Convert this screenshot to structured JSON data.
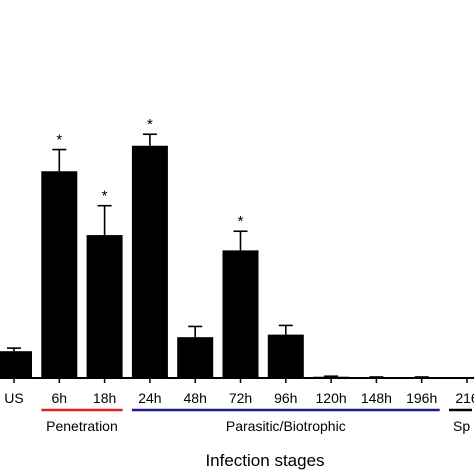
{
  "chart_data": {
    "type": "bar",
    "categories": [
      "US",
      "6h",
      "18h",
      "24h",
      "48h",
      "72h",
      "96h",
      "120h",
      "148h",
      "196h",
      "216"
    ],
    "values": [
      1.05,
      8.1,
      5.6,
      9.1,
      1.6,
      5.0,
      1.7,
      0.05,
      0.03,
      0.03,
      0
    ],
    "errors": [
      0.12,
      0.85,
      1.15,
      0.45,
      0.42,
      0.75,
      0.36,
      0.02,
      0.01,
      0.01,
      0
    ],
    "significance": [
      "",
      "*",
      "*",
      "*",
      "",
      "*",
      "",
      "",
      "",
      "",
      ""
    ],
    "xlabel": "Infection stages",
    "ylim": [
      0,
      10.5
    ],
    "bar_color": "#000000",
    "stages": [
      {
        "label": "Penetration",
        "color": "#dd2222",
        "from": "6h",
        "to": "18h"
      },
      {
        "label": "Parasitic/Biotrophic",
        "color": "#1a1a8c",
        "from": "24h",
        "to": "196h"
      },
      {
        "label": "Sp",
        "color": "#000000",
        "from": "216",
        "to": "216"
      }
    ]
  }
}
